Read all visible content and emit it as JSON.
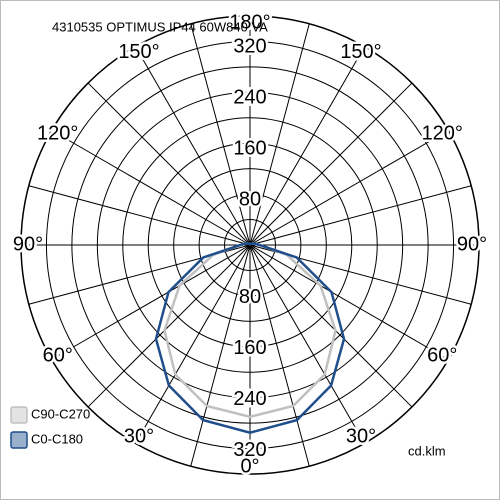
{
  "chart_data": {
    "type": "polar",
    "title": "4310535 OPTIMUS IP44 60W840 VA",
    "unit": "cd.klm",
    "rlim": [
      0,
      360
    ],
    "rgrid": [
      40,
      80,
      120,
      160,
      200,
      240,
      280,
      320,
      360
    ],
    "rticks": [
      80,
      160,
      240,
      320
    ],
    "angles": [
      0,
      15,
      30,
      45,
      60,
      75,
      90,
      105,
      120,
      135,
      150,
      165,
      180
    ],
    "angle_ticks": [
      {
        "value": 0,
        "label": "0°"
      },
      {
        "value": 30,
        "label": "30°"
      },
      {
        "value": 60,
        "label": "60°"
      },
      {
        "value": 90,
        "label": "90°"
      },
      {
        "value": 120,
        "label": "120°"
      },
      {
        "value": 150,
        "label": "150°"
      },
      {
        "value": 180,
        "label": "180°"
      }
    ],
    "series": [
      {
        "name": "C90-C270",
        "color": "#c0c0c0",
        "values": [
          270,
          262,
          235,
          190,
          128,
          60,
          15,
          8,
          5,
          3,
          2,
          2,
          2
        ]
      },
      {
        "name": "C0-C180",
        "color": "#1f4e8c",
        "values": [
          295,
          285,
          255,
          209,
          148,
          76,
          15,
          8,
          5,
          3,
          2,
          2,
          2
        ]
      }
    ]
  }
}
